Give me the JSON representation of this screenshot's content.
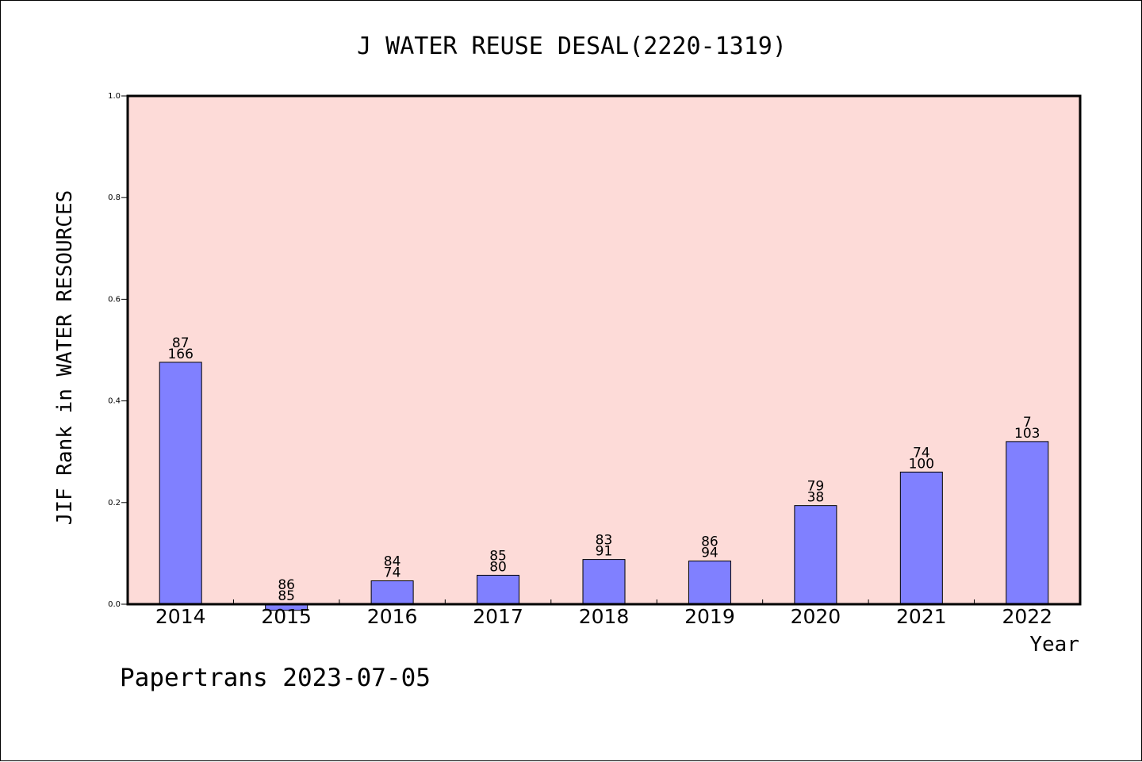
{
  "footer": {
    "text": "Papertrans 2023-07-05"
  },
  "colors": {
    "plot_bg": "#fddbd8",
    "bar": "#8080ff",
    "bar_stroke": "#000000"
  },
  "chart_data": {
    "type": "bar",
    "title": "J WATER REUSE DESAL(2220-1319)",
    "xlabel": "Year",
    "ylabel": "JIF Rank in WATER RESOURCES",
    "ylim": [
      0,
      1.0
    ],
    "yticks": [
      "0.0",
      "0.2",
      "0.4",
      "0.6",
      "0.8",
      "1.0"
    ],
    "categories": [
      "2014",
      "2015",
      "2016",
      "2017",
      "2018",
      "2019",
      "2020",
      "2021",
      "2022"
    ],
    "values": [
      0.476,
      -0.012,
      0.046,
      0.057,
      0.088,
      0.085,
      0.194,
      0.26,
      0.32
    ],
    "labels_top": [
      "87",
      "86",
      "84",
      "85",
      "83",
      "86",
      "79",
      "74",
      "7"
    ],
    "labels_bottom": [
      "166",
      "85",
      "74",
      "80",
      "91",
      "94",
      "38",
      "100",
      "103"
    ],
    "grid": false,
    "legend": "none"
  }
}
